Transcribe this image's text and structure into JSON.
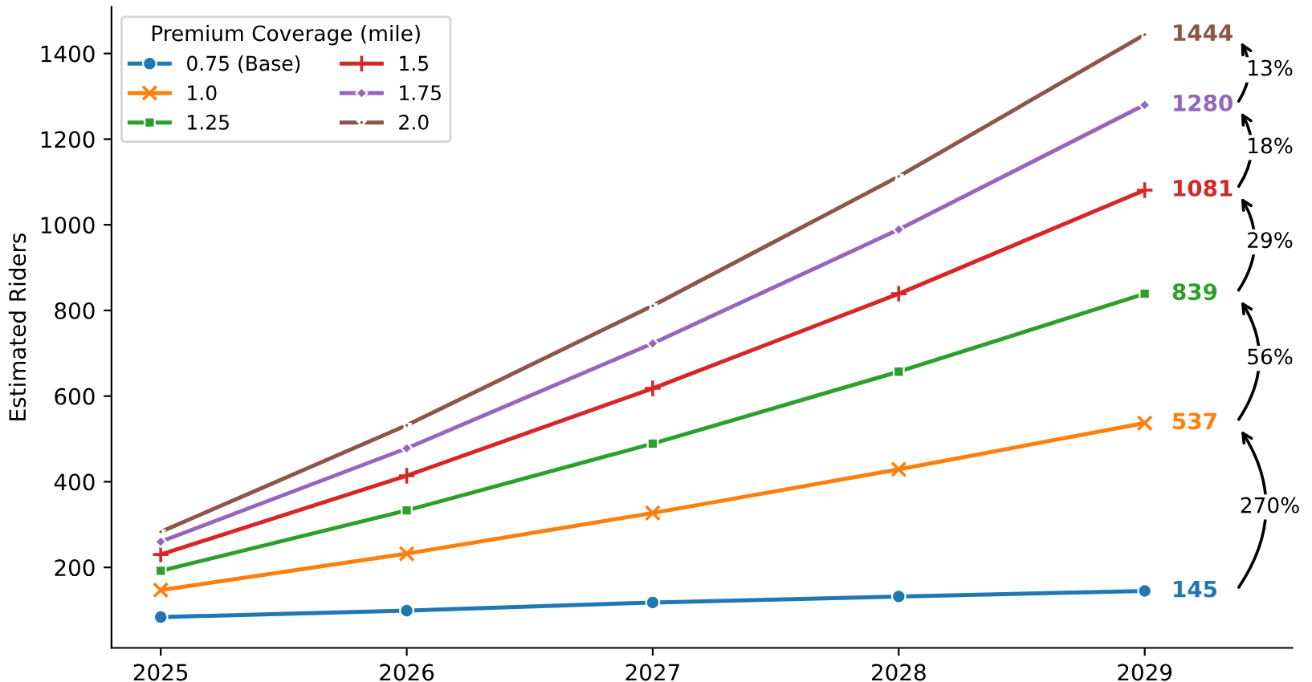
{
  "chart_data": {
    "type": "line",
    "ylabel": "Estimated Riders",
    "legend_title": "Premium Coverage (mile)",
    "legend": "top left",
    "x": [
      2025,
      2026,
      2027,
      2028,
      2029
    ],
    "xlim": [
      2024.8,
      2029.6
    ],
    "xticks": [
      2025,
      2026,
      2027,
      2028,
      2029
    ],
    "ylim": [
      12,
      1509
    ],
    "yticks": [
      200,
      400,
      600,
      800,
      1000,
      1200,
      1400
    ],
    "grid": false,
    "line_style": "solid",
    "series": [
      {
        "name": "0.75 (Base)",
        "color": "#1f77b4",
        "marker": "circle",
        "values": [
          84,
          99,
          118,
          132,
          145
        ],
        "value_labels": [
          null,
          null,
          null,
          null,
          "145"
        ]
      },
      {
        "name": "1.0",
        "color": "#ff7f0e",
        "marker": "cross",
        "values": [
          147,
          232,
          327,
          429,
          537
        ],
        "value_labels": [
          null,
          null,
          null,
          null,
          "537"
        ]
      },
      {
        "name": "1.25",
        "color": "#2ca02c",
        "marker": "square",
        "values": [
          192,
          333,
          489,
          657,
          839
        ],
        "value_labels": [
          null,
          null,
          null,
          null,
          "839"
        ]
      },
      {
        "name": "1.5",
        "color": "#d62728",
        "marker": "plus",
        "values": [
          230,
          414,
          618,
          839,
          1081
        ],
        "value_labels": [
          null,
          null,
          null,
          null,
          "1081"
        ]
      },
      {
        "name": "1.75",
        "color": "#9467bd",
        "marker": "diamond",
        "values": [
          260,
          478,
          723,
          989,
          1280
        ],
        "value_labels": [
          null,
          null,
          null,
          null,
          "1280"
        ]
      },
      {
        "name": "2.0",
        "color": "#8c564b",
        "marker": "star",
        "values": [
          283,
          532,
          811,
          1113,
          1444
        ],
        "value_labels": [
          null,
          null,
          null,
          null,
          "1444"
        ]
      }
    ],
    "annotations": [
      "270%",
      "56%",
      "29%",
      "18%",
      "13%"
    ]
  }
}
